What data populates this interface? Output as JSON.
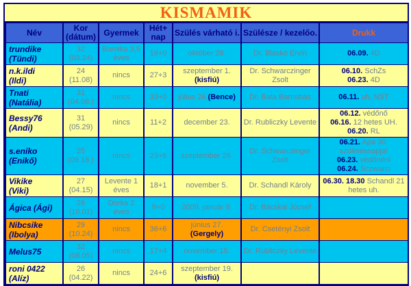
{
  "title": "KISMAMIK",
  "colors": {
    "header_bg": "#3B64D8",
    "cyan": "#00C4F0",
    "yellow": "#FFFF99",
    "orange": "#FF9E00",
    "navy": "#000080",
    "muted": "#708090",
    "accent_orange": "#F26011"
  },
  "columns": [
    {
      "label": "Név"
    },
    {
      "label": "Kor (dátum)"
    },
    {
      "label": "Gyermek"
    },
    {
      "label": "Hét+ nap"
    },
    {
      "label": "Szülés várható i."
    },
    {
      "label": "Szülésze / kezelőo."
    },
    {
      "label": "Drukk"
    }
  ],
  "rows": [
    {
      "bg": "cyan",
      "name_lines": [
        "trundike",
        "(Tündi)"
      ],
      "kor_lines": [
        "32",
        "(03.24)"
      ],
      "gyermek": "Barnika 3,5 éves",
      "het_nap": "19+0",
      "szules": [
        [
          {
            "text": "október 28.",
            "bold": false
          }
        ]
      ],
      "szulesz": "Dr. Blaskó Ervin",
      "drukk": [
        [
          {
            "text": "06.09.",
            "bold": true
          },
          {
            "text": " 4D",
            "bold": false
          }
        ]
      ]
    },
    {
      "bg": "yellow",
      "name_lines": [
        "n.k.ildi",
        "(Ildi)"
      ],
      "kor_lines": [
        "24",
        "(11.08)"
      ],
      "gyermek": "nincs",
      "het_nap": "27+3",
      "szules": [
        [
          {
            "text": "szeptember 1.",
            "bold": false
          }
        ],
        [
          {
            "text": "(kisfiú)",
            "bold": true
          }
        ]
      ],
      "szulesz": "Dr. Schwarczinger Zsolt",
      "drukk": [
        [
          {
            "text": "06.10.",
            "bold": true
          },
          {
            "text": " SchZs",
            "bold": false
          }
        ],
        [
          {
            "text": "06.23.",
            "bold": true
          },
          {
            "text": " 4D",
            "bold": false
          }
        ]
      ]
    },
    {
      "bg": "cyan",
      "name_lines": [
        "Tnati (Natália)"
      ],
      "kor_lines": [
        "31",
        "(04.08.)"
      ],
      "gyermek": "nincs",
      "het_nap": "33+0",
      "szules": [
        [
          {
            "text": "július 26.",
            "bold": false
          },
          {
            "text": "(Bence)",
            "bold": true
          }
        ]
      ],
      "szulesz": "Dr. Bata Barnabás",
      "drukk": [
        [
          {
            "text": "06.11.",
            "bold": true
          },
          {
            "text": " uh, NST",
            "bold": false
          }
        ]
      ]
    },
    {
      "bg": "yellow",
      "name_lines": [
        "Bessy76",
        "(Andi)"
      ],
      "kor_lines": [
        "31",
        "(05.29)"
      ],
      "gyermek": "nincs",
      "het_nap": "11+2",
      "szules": [
        [
          {
            "text": "december 23.",
            "bold": false
          }
        ]
      ],
      "szulesz": "Dr. Rubliczky Levente",
      "drukk": [
        [
          {
            "text": "06.12.",
            "bold": true
          },
          {
            "text": " védőnő",
            "bold": false
          }
        ],
        [
          {
            "text": "06.16.",
            "bold": true
          },
          {
            "text": " 12 hetes UH.",
            "bold": false
          }
        ],
        [
          {
            "text": "06.20.",
            "bold": true
          },
          {
            "text": " RL",
            "bold": false
          }
        ]
      ]
    },
    {
      "bg": "cyan",
      "name_lines": [
        "s.eniko",
        "(Enikő)"
      ],
      "kor_lines": [
        "25",
        "(09.18.)"
      ],
      "gyermek": "nincs",
      "het_nap": "23+6",
      "szules": [
        [
          {
            "text": "szeptember 26.",
            "bold": false
          }
        ]
      ],
      "szulesz": "Dr. Schwarczinger Zsolt",
      "drukk": [
        [
          {
            "text": "06.21.",
            "bold": true
          },
          {
            "text": " Apa 30. születésnapja!",
            "bold": false
          }
        ],
        [
          {
            "text": "06.23.",
            "bold": true
          },
          {
            "text": " védőnéni",
            "bold": false
          }
        ],
        [
          {
            "text": "06.24.",
            "bold": true
          },
          {
            "text": " Sczwarci",
            "bold": false
          }
        ]
      ]
    },
    {
      "bg": "yellow",
      "name_lines": [
        "Vikike",
        "(Viki)"
      ],
      "kor_lines": [
        "27",
        "(04.15)"
      ],
      "gyermek": "Levente 1 éves",
      "het_nap": "18+1",
      "szules": [
        [
          {
            "text": "november 5.",
            "bold": false
          }
        ]
      ],
      "szulesz": "Dr. Schandl Károly",
      "drukk": [
        [
          {
            "text": "06.30. 18.30",
            "bold": true
          },
          {
            "text": " Schandl 21 hetes uh.",
            "bold": false
          }
        ]
      ]
    },
    {
      "bg": "cyan",
      "name_lines": [
        "Ágica (Ági)"
      ],
      "kor_lines": [
        "26",
        "(10.01)"
      ],
      "gyermek": "Dorka 2 éves",
      "het_nap": "9+0",
      "szules": [
        [
          {
            "text": "2009. január 8.",
            "bold": false
          }
        ]
      ],
      "szulesz": "Dr. Bácskai József",
      "drukk": []
    },
    {
      "bg": "orange",
      "name_lines": [
        "Nibcsike",
        "(Ibolya)"
      ],
      "kor_lines": [
        "29",
        "(10.24)"
      ],
      "gyermek": "nincs",
      "het_nap": "36+6",
      "szules": [
        [
          {
            "text": "június 27.",
            "bold": false
          }
        ],
        [
          {
            "text": "(Gergely)",
            "bold": true
          }
        ]
      ],
      "szulesz": "Dr. Csetényi Zsolt",
      "drukk": []
    },
    {
      "bg": "cyan",
      "name_lines": [
        "Melus75"
      ],
      "kor_lines": [
        "32",
        "(08.05)"
      ],
      "gyermek": "nincs",
      "het_nap": "17+4",
      "szules": [
        [
          {
            "text": "november 15.",
            "bold": false
          }
        ]
      ],
      "szulesz": "Dr. Rubliczky Levente",
      "drukk": []
    },
    {
      "bg": "yellow",
      "name_lines": [
        "roni 0422",
        "(Alíz)"
      ],
      "kor_lines": [
        "26",
        "(04.22)"
      ],
      "gyermek": "nincs",
      "het_nap": "24+6",
      "szules": [
        [
          {
            "text": "szeptember 19.",
            "bold": false
          }
        ],
        [
          {
            "text": "(kisfiú)",
            "bold": true
          }
        ]
      ],
      "szulesz": "",
      "drukk": []
    }
  ]
}
